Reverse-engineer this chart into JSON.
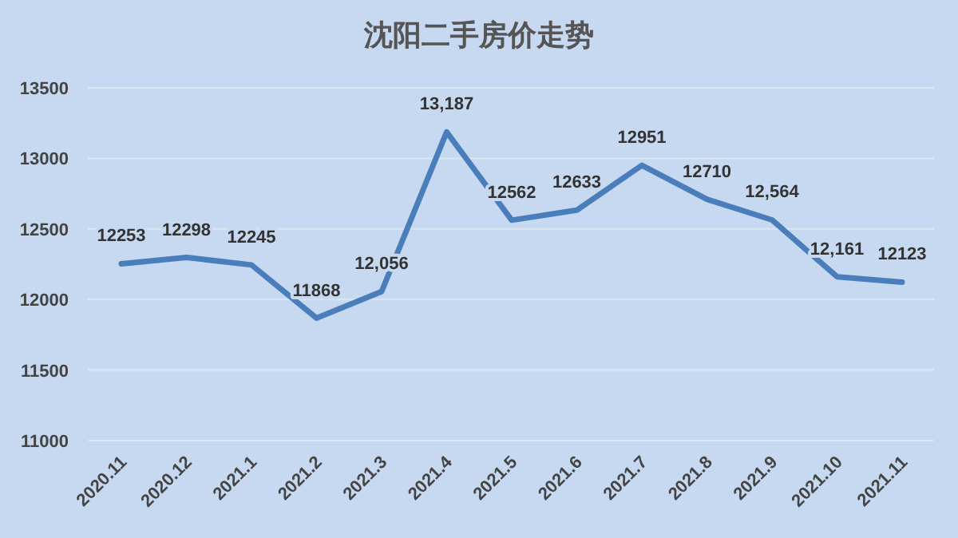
{
  "chart_data": {
    "type": "line",
    "title": "沈阳二手房价走势",
    "categories": [
      "2020.11",
      "2020.12",
      "2021.1",
      "2021.2",
      "2021.3",
      "2021.4",
      "2021.5",
      "2021.6",
      "2021.7",
      "2021.8",
      "2021.9",
      "2021.10",
      "2021.11"
    ],
    "series": [
      {
        "color": "#4a7ebb",
        "values": [
          12253,
          12298,
          12245,
          11868,
          12056,
          13187,
          12562,
          12633,
          12951,
          12710,
          12564,
          12161,
          12123
        ],
        "value_labels": [
          "12253",
          "12298",
          "12245",
          "11868",
          "12,056",
          "13,187",
          "12562",
          "12633",
          "12951",
          "12710",
          "12,564",
          "12,161",
          "12123"
        ]
      }
    ],
    "ylim": [
      11000,
      13500
    ],
    "yticks": [
      11000,
      11500,
      12000,
      12500,
      13000,
      13500
    ],
    "grid": "y",
    "marker": "none",
    "line_style": "solid"
  }
}
